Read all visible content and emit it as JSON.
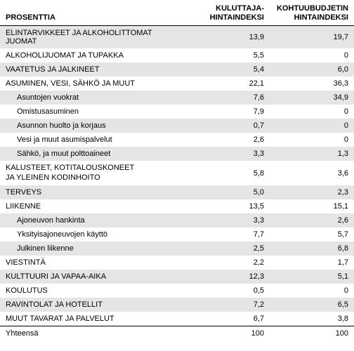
{
  "columns": {
    "c0": "PROSENTTIA",
    "c1_line1": "KULUTTAJA-",
    "c1_line2": "HINTAINDEKSI",
    "c2_line1": "KOHTUUBUDJETIN",
    "c2_line2": "HINTAINDEKSI"
  },
  "rows": [
    {
      "label": "ELINTARVIKKEET JA ALKOHOLITTOMAT JUOMAT",
      "sub": false,
      "v1": "13,9",
      "v2": "19,7",
      "shade": true
    },
    {
      "label": "ALKOHOLIJUOMAT JA TUPAKKA",
      "sub": false,
      "v1": "5,5",
      "v2": "0",
      "shade": false
    },
    {
      "label": "VAATETUS JA JALKINEET",
      "sub": false,
      "v1": "5,4",
      "v2": "6,0",
      "shade": true
    },
    {
      "label": "ASUMINEN, VESI, SÄHKÖ JA MUUT",
      "sub": false,
      "v1": "22,1",
      "v2": "36,3",
      "shade": false
    },
    {
      "label": "Asuntojen vuokrat",
      "sub": true,
      "v1": "7,6",
      "v2": "34,9",
      "shade": true
    },
    {
      "label": "Omistusasuminen",
      "sub": true,
      "v1": "7,9",
      "v2": "0",
      "shade": false
    },
    {
      "label": "Asunnon huolto ja korjaus",
      "sub": true,
      "v1": "0,7",
      "v2": "0",
      "shade": true
    },
    {
      "label": "Vesi ja muut asumispalvelut",
      "sub": true,
      "v1": "2,6",
      "v2": "0",
      "shade": false
    },
    {
      "label": "Sähkö, ja muut polttoaineet",
      "sub": true,
      "v1": "3,3",
      "v2": "1,3",
      "shade": true
    },
    {
      "label": "KALUSTEET, KOTITALOUSKONEET\nJA YLEINEN KODINHOITO",
      "sub": false,
      "v1": "5,8",
      "v2": "3,6",
      "shade": false,
      "multiline": true
    },
    {
      "label": "TERVEYS",
      "sub": false,
      "v1": "5,0",
      "v2": "2,3",
      "shade": true
    },
    {
      "label": "LIIKENNE",
      "sub": false,
      "v1": "13,5",
      "v2": "15,1",
      "shade": false
    },
    {
      "label": "Ajoneuvon hankinta",
      "sub": true,
      "v1": "3,3",
      "v2": "2,6",
      "shade": true
    },
    {
      "label": "Yksityisajoneuvojen käyttö",
      "sub": true,
      "v1": "7,7",
      "v2": "5,7",
      "shade": false
    },
    {
      "label": "Julkinen liikenne",
      "sub": true,
      "v1": "2,5",
      "v2": "6,8",
      "shade": true
    },
    {
      "label": "VIESTINTÄ",
      "sub": false,
      "v1": "2,2",
      "v2": "1,7",
      "shade": false
    },
    {
      "label": "KULTTUURI JA VAPAA-AIKA",
      "sub": false,
      "v1": "12,3",
      "v2": "5,1",
      "shade": true
    },
    {
      "label": "KOULUTUS",
      "sub": false,
      "v1": "0,5",
      "v2": "0",
      "shade": false
    },
    {
      "label": "RAVINTOLAT JA HOTELLIT",
      "sub": false,
      "v1": "7,2",
      "v2": "6,5",
      "shade": true
    },
    {
      "label": "MUUT TAVARAT JA PALVELUT",
      "sub": false,
      "v1": "6,7",
      "v2": "3,8",
      "shade": false
    }
  ],
  "total": {
    "label": "Yhteensä",
    "v1": "100",
    "v2": "100"
  }
}
